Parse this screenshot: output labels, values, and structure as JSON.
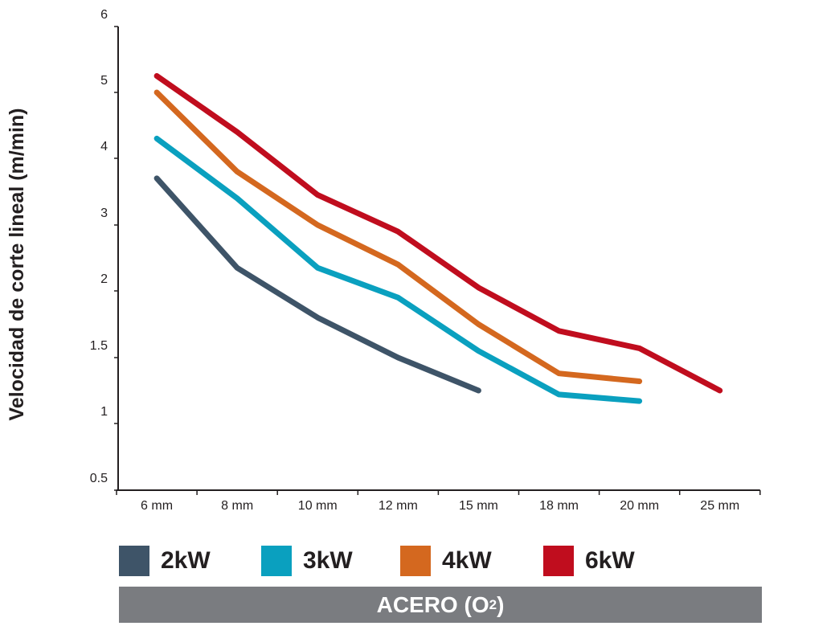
{
  "chart_data": {
    "type": "line",
    "categories": [
      "6 mm",
      "8 mm",
      "10 mm",
      "12 mm",
      "15 mm",
      "18 mm",
      "20 mm",
      "25 mm"
    ],
    "y_ticks": [
      "0.5",
      "1",
      "1.5",
      "2",
      "3",
      "4",
      "5",
      "6"
    ],
    "ylabel": "Velocidad de corte lineal (m/min)",
    "series": [
      {
        "name": "2kW",
        "color": "#3e5468",
        "values": [
          3.7,
          2.35,
          1.8,
          1.5,
          1.25,
          null,
          null,
          null
        ]
      },
      {
        "name": "3kW",
        "color": "#0aa0bf",
        "values": [
          4.3,
          3.4,
          2.35,
          1.95,
          1.55,
          1.22,
          1.17,
          null
        ]
      },
      {
        "name": "4kW",
        "color": "#d4681f",
        "values": [
          5.0,
          3.8,
          3.0,
          2.4,
          1.75,
          1.38,
          1.32,
          null
        ]
      },
      {
        "name": "6kW",
        "color": "#c00d1e",
        "values": [
          5.25,
          4.4,
          3.45,
          2.9,
          2.05,
          1.7,
          1.57,
          1.25
        ]
      }
    ],
    "footer_main": "ACERO (O",
    "footer_sub": "2",
    "footer_end": ")",
    "grid": false,
    "legend_position": "bottom"
  }
}
